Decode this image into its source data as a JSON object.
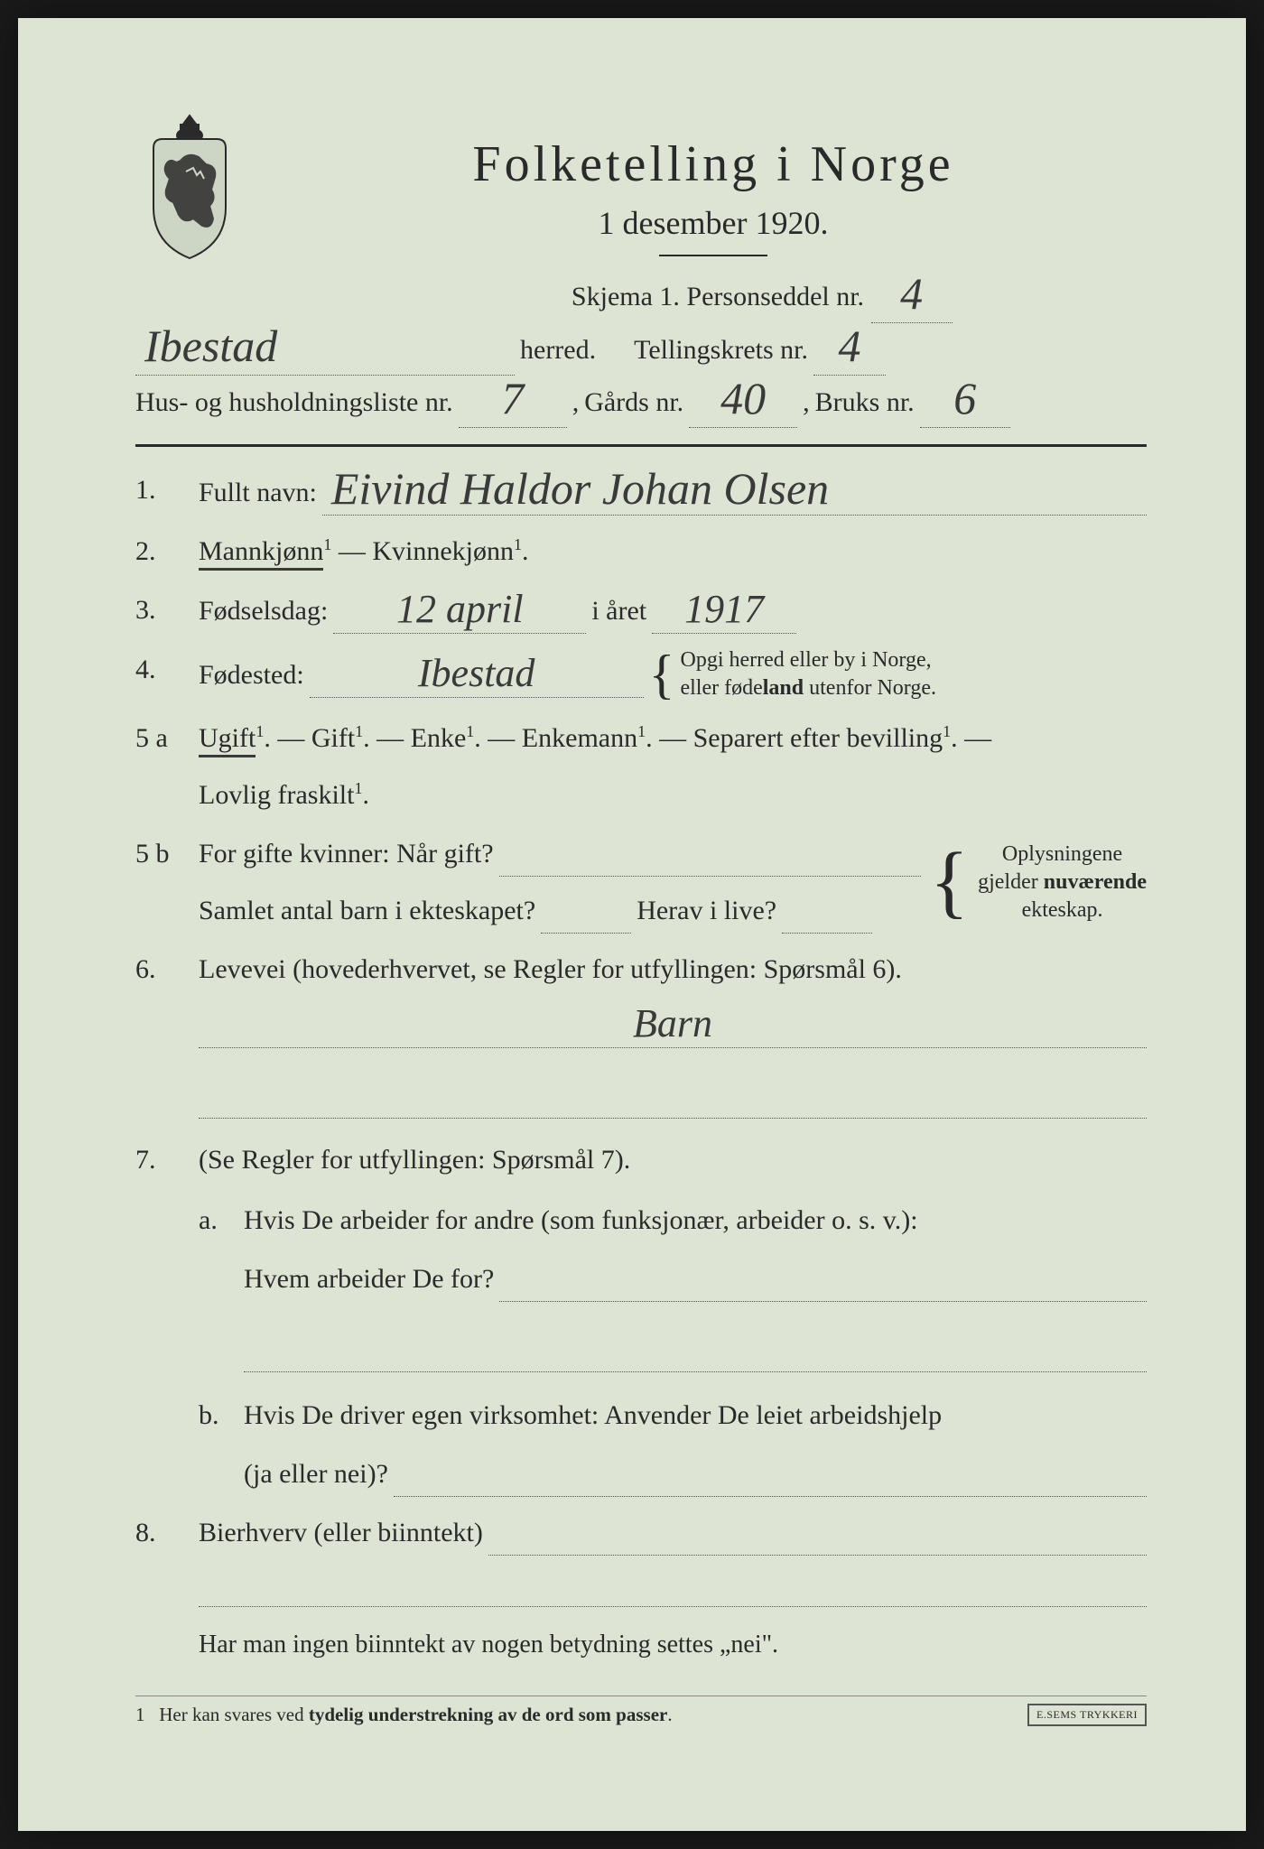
{
  "colors": {
    "paper": "#dde4d4",
    "ink": "#2a2a2a",
    "handwriting": "#3a3a3a",
    "background": "#1a1a1a"
  },
  "header": {
    "title": "Folketelling i Norge",
    "date": "1 desember 1920."
  },
  "meta": {
    "skjema_label": "Skjema 1. Personseddel nr.",
    "skjema_nr": "4",
    "herred_label": "herred.",
    "herred_value": "Ibestad",
    "tellingskrets_label": "Tellingskrets nr.",
    "tellingskrets_nr": "4",
    "hus_label": "Hus- og husholdningsliste nr.",
    "hus_nr": "7",
    "gards_label": "Gårds nr.",
    "gards_nr": "40",
    "bruks_label": "Bruks nr.",
    "bruks_nr": "6"
  },
  "q1": {
    "num": "1.",
    "label": "Fullt navn:",
    "value": "Eivind Haldor Johan Olsen"
  },
  "q2": {
    "num": "2.",
    "mann": "Mannkjønn",
    "dash": " — ",
    "kvinne": "Kvinnekjønn",
    "sup": "1",
    "period": "."
  },
  "q3": {
    "num": "3.",
    "label": "Fødselsdag:",
    "day_month": "12 april",
    "mid": "i året",
    "year": "1917"
  },
  "q4": {
    "num": "4.",
    "label": "Fødested:",
    "value": "Ibestad",
    "note1": "Opgi herred eller by i Norge,",
    "note2": "eller fødeland utenfor Norge."
  },
  "q5a": {
    "num": "5 a",
    "ugift": "Ugift",
    "gift": "Gift",
    "enke": "Enke",
    "enkemann": "Enkemann",
    "separert": "Separert efter bevilling",
    "fraskilt": "Lovlig fraskilt",
    "sup": "1",
    "dash": ". — ",
    "period": "."
  },
  "q5b": {
    "num": "5 b",
    "line1a": "For gifte kvinner: Når gift?",
    "line2a": "Samlet antal barn i ekteskapet?",
    "line2b": "Herav i live?",
    "note1": "Oplysningene",
    "note2": "gjelder nuværende",
    "note3": "ekteskap."
  },
  "q6": {
    "num": "6.",
    "label": "Levevei (hovederhvervet, se Regler for utfyllingen: Spørsmål 6).",
    "value": "Barn"
  },
  "q7": {
    "num": "7.",
    "label": "(Se Regler for utfyllingen: Spørsmål 7).",
    "a_num": "a.",
    "a1": "Hvis De arbeider for andre (som funksjonær, arbeider o. s. v.):",
    "a2": "Hvem arbeider De for?",
    "b_num": "b.",
    "b1": "Hvis De driver egen virksomhet: Anvender De leiet arbeidshjelp",
    "b2": "(ja eller nei)?"
  },
  "q8": {
    "num": "8.",
    "label": "Bierhverv (eller biinntekt)"
  },
  "note_bottom": "Har man ingen biinntekt av nogen betydning settes „nei\".",
  "footnote": {
    "num": "1",
    "text": "Her kan svares ved tydelig understrekning av de ord som passer.",
    "stamp": "E.SEMS TRYKKERI"
  }
}
